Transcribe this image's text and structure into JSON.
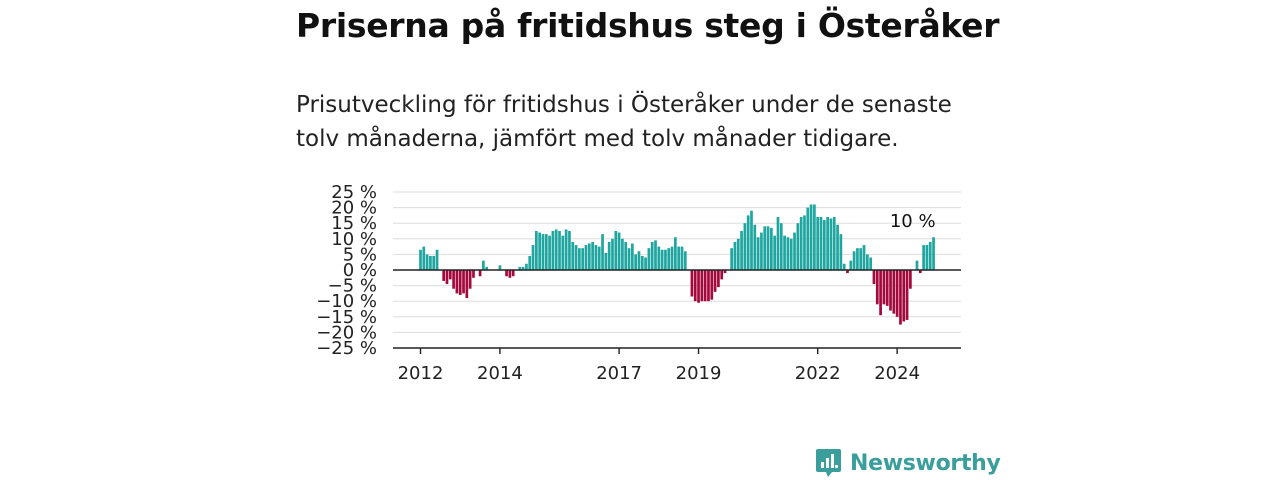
{
  "title": "Priserna på fritidshus steg i Österåker",
  "subtitle": "Prisutveckling för fritidshus i Österåker under de senaste tolv månaderna, jämfört med tolv månader tidigare.",
  "brand": {
    "name": "Newsworthy",
    "color": "#3a9e9c"
  },
  "colors": {
    "positive": "#1fa6a0",
    "negative": "#a3093c",
    "grid": "#dddddd",
    "zero": "#222222"
  },
  "chart_data": {
    "type": "bar",
    "y_tick_labels": [
      "25 %",
      "20 %",
      "15 %",
      "10 %",
      "5 %",
      "0 %",
      "−5 %",
      "−10 %",
      "−15 %",
      "−20 %",
      "−25 %"
    ],
    "y_ticks": [
      25,
      20,
      15,
      10,
      5,
      0,
      -5,
      -10,
      -15,
      -20,
      -25
    ],
    "ylim": [
      -25,
      25
    ],
    "x_tick_labels": [
      {
        "label": "2012",
        "index": 0
      },
      {
        "label": "2014",
        "index": 24
      },
      {
        "label": "2017",
        "index": 60
      },
      {
        "label": "2019",
        "index": 84
      },
      {
        "label": "2022",
        "index": 120
      },
      {
        "label": "2024",
        "index": 144
      }
    ],
    "grid": true,
    "annotation": {
      "text": "10 %",
      "index": 155
    },
    "start": "2012-01",
    "values": [
      6.5,
      7.5,
      5,
      4.5,
      4.5,
      6.5,
      0,
      -3.5,
      -4.5,
      -3,
      -6,
      -7.5,
      -8,
      -7.5,
      -9,
      -6,
      -2.5,
      0,
      -2,
      3,
      1,
      0,
      0,
      0,
      1.5,
      0,
      -2,
      -2.5,
      -2,
      0,
      1,
      1,
      2,
      4.5,
      8,
      12.5,
      12,
      11.5,
      11.5,
      11,
      12.5,
      13,
      12.5,
      11,
      13,
      12.5,
      9,
      8,
      7,
      7,
      8,
      8.5,
      9,
      8,
      7.5,
      11.5,
      5.5,
      9,
      10,
      12.5,
      12,
      10,
      9,
      7,
      8.5,
      5,
      6,
      4.5,
      4,
      7,
      9,
      9.5,
      7.5,
      6.5,
      6.5,
      7,
      7.5,
      10.5,
      7.5,
      7.5,
      6,
      0,
      -8.5,
      -10,
      -10.5,
      -10,
      -10,
      -10,
      -9.5,
      -7,
      -5.5,
      -3,
      -1,
      0,
      7,
      9,
      10,
      12.5,
      15,
      17.5,
      19,
      14.5,
      10.5,
      12,
      14,
      14,
      13.5,
      11,
      17,
      15,
      11,
      10.5,
      10,
      12,
      15,
      17,
      17.5,
      20,
      21,
      21,
      17,
      17,
      16,
      17,
      16.5,
      17,
      14.5,
      11.5,
      2,
      -1,
      3,
      6,
      7,
      7,
      8,
      5,
      4,
      -4.5,
      -11,
      -14.5,
      -11,
      -11.5,
      -13,
      -14,
      -15,
      -17.5,
      -16.5,
      -16,
      -6,
      0,
      3,
      -1,
      8,
      8,
      9,
      10.5
    ]
  }
}
